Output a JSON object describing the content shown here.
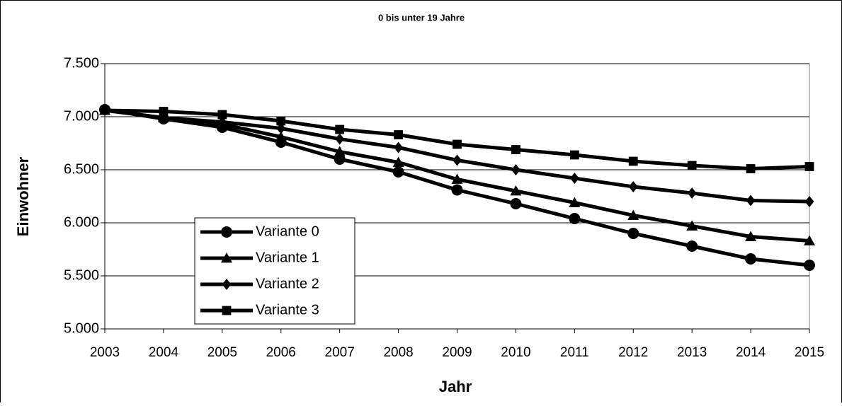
{
  "chart_data": {
    "type": "line",
    "title": "0 bis unter 19 Jahre",
    "x_label": "Jahr",
    "y_label": "Einwohner",
    "categories": [
      "2003",
      "2004",
      "2005",
      "2006",
      "2007",
      "2008",
      "2009",
      "2010",
      "2011",
      "2012",
      "2013",
      "2014",
      "2015"
    ],
    "series": [
      {
        "name": "Variante 0",
        "color": "#000000",
        "marker": "circle",
        "values": [
          7067,
          6980,
          6900,
          6760,
          6600,
          6480,
          6310,
          6180,
          6040,
          5900,
          5780,
          5660,
          5600
        ]
      },
      {
        "name": "Variante 1",
        "color": "#000000",
        "marker": "triangle",
        "values": [
          7060,
          6990,
          6930,
          6810,
          6670,
          6570,
          6410,
          6300,
          6190,
          6070,
          5970,
          5870,
          5830
        ]
      },
      {
        "name": "Variante 2",
        "color": "#000000",
        "marker": "diamond",
        "values": [
          7060,
          6990,
          6950,
          6890,
          6790,
          6710,
          6590,
          6500,
          6420,
          6340,
          6280,
          6210,
          6200
        ]
      },
      {
        "name": "Variante 3",
        "color": "#000000",
        "marker": "square",
        "values": [
          7060,
          7050,
          7020,
          6960,
          6880,
          6830,
          6740,
          6690,
          6640,
          6580,
          6540,
          6510,
          6530
        ]
      }
    ],
    "ylim": [
      5000,
      7500
    ],
    "yticks": [
      {
        "value": 5000,
        "label": "5.000"
      },
      {
        "value": 5500,
        "label": "5.500"
      },
      {
        "value": 6000,
        "label": "6.000"
      },
      {
        "value": 6500,
        "label": "6.500"
      },
      {
        "value": 7000,
        "label": "7.000"
      },
      {
        "value": 7500,
        "label": "7.500"
      }
    ],
    "grid": true,
    "legend": "lower left"
  }
}
